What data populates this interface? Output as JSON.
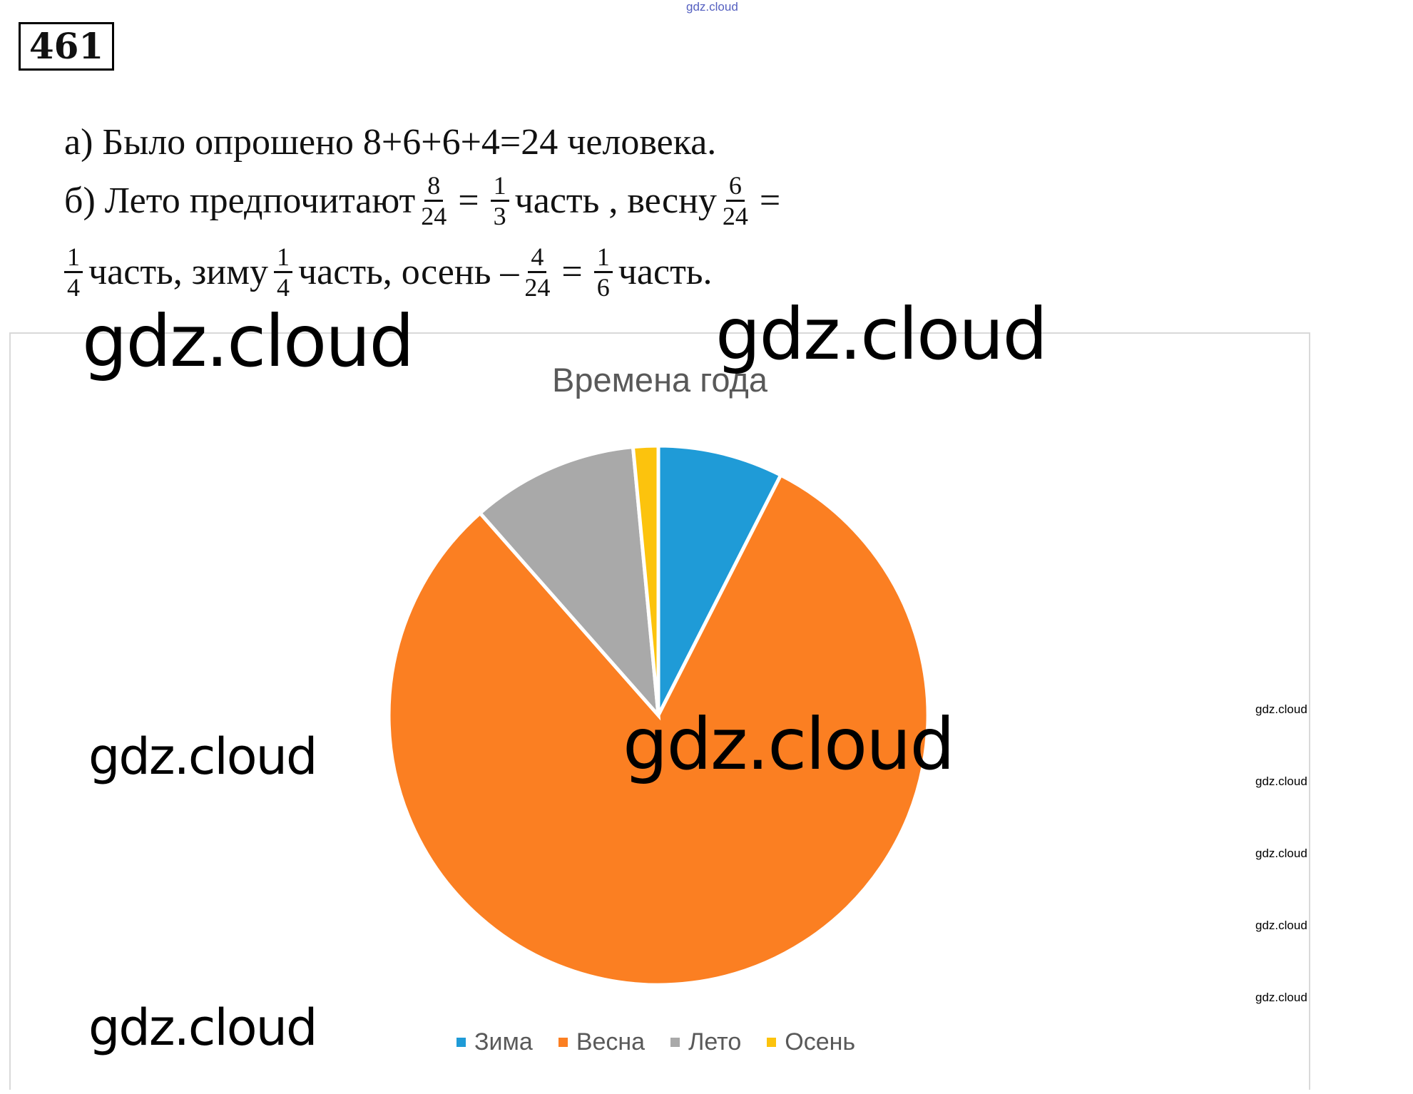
{
  "header": {
    "watermark_top": "gdz.cloud",
    "problem_number": "461"
  },
  "solution": {
    "line_a": "а) Было опрошено 8+6+6+4=24 человека.",
    "line_b": {
      "prefix": "б) Лето предпочитают",
      "f1": [
        "8",
        "24"
      ],
      "eq": "=",
      "f2": [
        "1",
        "3"
      ],
      "text1": "часть , весну",
      "f3": [
        "6",
        "24"
      ],
      "eq2": "="
    },
    "line_c": {
      "f1": [
        "1",
        "4"
      ],
      "text1": "часть, зиму",
      "f2": [
        "1",
        "4"
      ],
      "text2": "часть, осень –",
      "f3": [
        "4",
        "24"
      ],
      "eq": "=",
      "f4": [
        "1",
        "6"
      ],
      "text3": "часть."
    }
  },
  "chart_data": {
    "type": "pie",
    "title": "Времена года",
    "categories": [
      "Зима",
      "Весна",
      "Лето",
      "Осень"
    ],
    "values": [
      7.5,
      81,
      10,
      1.5
    ],
    "colors": [
      "#1f9bd7",
      "#fb7f22",
      "#a9a9a9",
      "#fcc30d"
    ],
    "legend": "bottom"
  },
  "watermarks": [
    "gdz.cloud",
    "gdz.cloud",
    "gdz.cloud",
    "gdz.cloud",
    "gdz.cloud"
  ],
  "small_watermarks": [
    "gdz.cloud",
    "gdz.cloud",
    "gdz.cloud",
    "gdz.cloud",
    "gdz.cloud"
  ]
}
